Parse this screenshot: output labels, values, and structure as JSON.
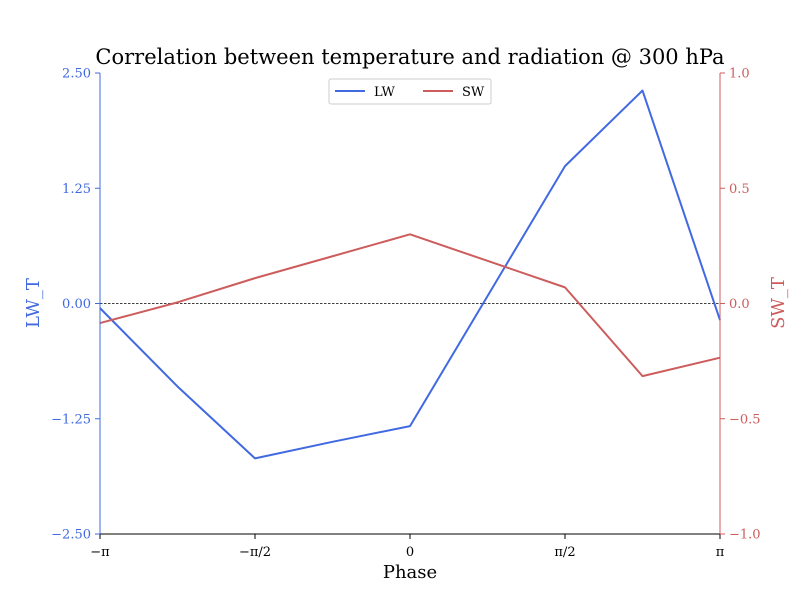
{
  "chart_data": {
    "type": "line",
    "title": "Correlation between temperature and radiation @ 300 hPa",
    "xlabel": "Phase",
    "xlim": [
      -3.14159,
      3.14159
    ],
    "x_ticks": [
      {
        "value": -3.14159,
        "label": "−π"
      },
      {
        "value": -1.5708,
        "label": "−π/2"
      },
      {
        "value": 0,
        "label": "0"
      },
      {
        "value": 1.5708,
        "label": "π/2"
      },
      {
        "value": 3.14159,
        "label": "π"
      }
    ],
    "y_left": {
      "label": "LW_T",
      "ylim": [
        -2.5,
        2.5
      ],
      "ticks": [
        {
          "value": 2.5,
          "label": "2.50"
        },
        {
          "value": 1.25,
          "label": "1.25"
        },
        {
          "value": 0,
          "label": "0.00"
        },
        {
          "value": -1.25,
          "label": "−1.25"
        },
        {
          "value": -2.5,
          "label": "−2.50"
        }
      ],
      "color": "#4169e1"
    },
    "y_right": {
      "label": "SW_T",
      "ylim": [
        -1.0,
        1.0
      ],
      "ticks": [
        {
          "value": 1.0,
          "label": "1.0"
        },
        {
          "value": 0.5,
          "label": "0.5"
        },
        {
          "value": 0.0,
          "label": "0.0"
        },
        {
          "value": -0.5,
          "label": "−0.5"
        },
        {
          "value": -1.0,
          "label": "−1.0"
        }
      ],
      "color": "#cd5c5c"
    },
    "zero_line": true,
    "legend_position": "top-center",
    "series": [
      {
        "name": "LW",
        "axis": "left",
        "color": "#4169e1",
        "x": [
          -3.14159,
          -2.35619,
          -1.5708,
          -0.7854,
          0,
          0.7854,
          1.5708,
          2.35619,
          3.14159
        ],
        "y": [
          -0.05,
          -0.9,
          -1.68,
          -1.5,
          -1.33,
          0.08,
          1.49,
          2.31,
          -0.18
        ]
      },
      {
        "name": "SW",
        "axis": "right",
        "color": "#cd5c5c",
        "x": [
          -3.14159,
          -2.35619,
          -1.5708,
          -0.7854,
          0,
          0.7854,
          1.5708,
          2.35619,
          3.14159
        ],
        "y": [
          -0.085,
          0.005,
          0.11,
          0.205,
          0.3,
          0.185,
          0.07,
          -0.315,
          -0.235
        ]
      }
    ]
  }
}
